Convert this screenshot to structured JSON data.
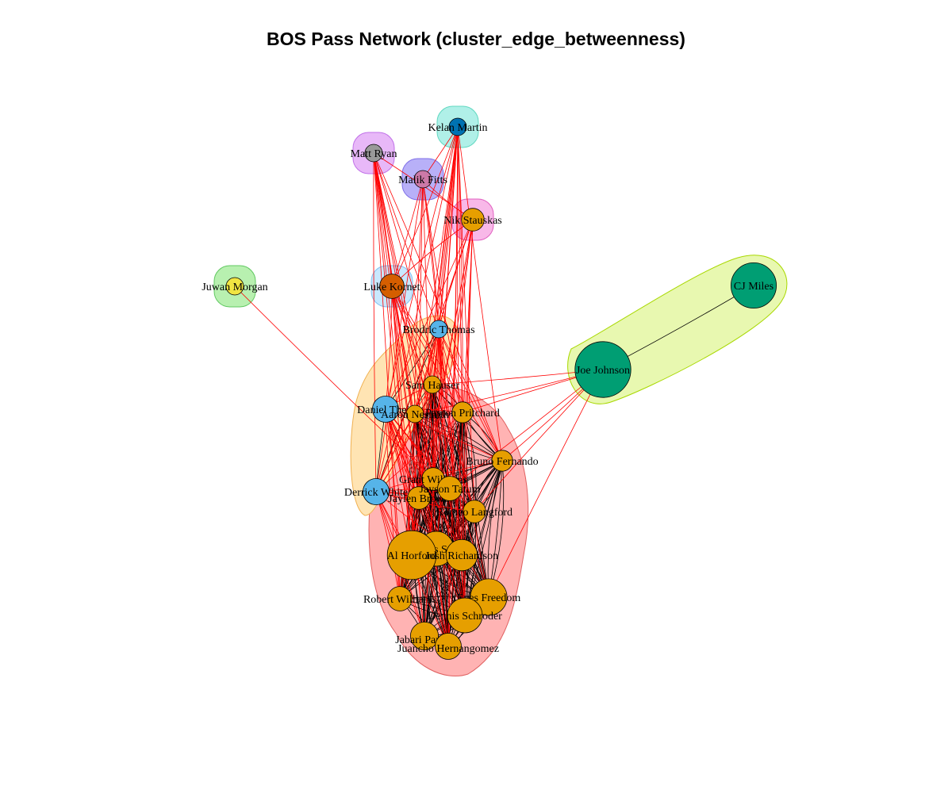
{
  "title": "BOS Pass Network (cluster_edge_betweenness)",
  "colors": {
    "orange": "#E69F00",
    "sky": "#56B4E9",
    "green": "#009E73",
    "yellow": "#F0E442",
    "blue": "#0072B2",
    "vermillion": "#D55E00",
    "pink": "#CC79A7",
    "gray": "#999999",
    "inter_edge": "#ff0000",
    "intra_edge": "#000000"
  },
  "clusters": [
    {
      "id": "c-main",
      "fill": "#ffb3b3",
      "stroke": "#e06060",
      "members": [
        "Marcus Smart",
        "Al Horford",
        "Jayson Tatum",
        "Josh Richardson",
        "Enes Freedom",
        "Dennis Schroder",
        "Payton Pritchard",
        "Sam Hauser",
        "Aaron Nesmith",
        "Grant Williams",
        "Jaylen Brown",
        "Bruno Fernando",
        "Romeo Langford",
        "Robert Williams",
        "Jabari Parker",
        "Juancho Hernangomez"
      ]
    },
    {
      "id": "c-sky",
      "fill": "#ffe4b3",
      "stroke": "#f0b050",
      "members": [
        "Daniel Theis",
        "Dennis Schroder",
        "Brodric Thomas",
        "Derrick White"
      ]
    },
    {
      "id": "c-green",
      "fill": "#e8f8b0",
      "stroke": "#a8d800",
      "members": [
        "Joe Johnson",
        "CJ Miles"
      ]
    },
    {
      "id": "c-yellow",
      "fill": "#b8f0b0",
      "stroke": "#60c860",
      "members": [
        "Juwan Morgan"
      ]
    },
    {
      "id": "c-luke",
      "fill": "#c8e8ff",
      "stroke": "#80c0f0",
      "members": [
        "Luke Kornet"
      ]
    },
    {
      "id": "c-kelan",
      "fill": "#b0f0e8",
      "stroke": "#60d8c0",
      "members": [
        "Kelan Martin"
      ]
    },
    {
      "id": "c-matt",
      "fill": "#e8b8f8",
      "stroke": "#c070e8",
      "members": [
        "Matt Ryan"
      ]
    },
    {
      "id": "c-malik",
      "fill": "#b8b0f8",
      "stroke": "#8070e8",
      "members": [
        "Malik Fitts"
      ]
    },
    {
      "id": "c-nik",
      "fill": "#f8b8e8",
      "stroke": "#e060c0",
      "members": [
        "Nik Stauskas"
      ]
    }
  ],
  "nodes": [
    {
      "name": "Kelan Martin",
      "color": "blue",
      "size": 1
    },
    {
      "name": "Matt Ryan",
      "color": "gray",
      "size": 1
    },
    {
      "name": "Malik Fitts",
      "color": "pink",
      "size": 1
    },
    {
      "name": "Nik Stauskas",
      "color": "orange",
      "size": 1.3
    },
    {
      "name": "Juwan Morgan",
      "color": "yellow",
      "size": 1
    },
    {
      "name": "Luke Kornet",
      "color": "vermillion",
      "size": 1.4
    },
    {
      "name": "CJ Miles",
      "color": "green",
      "size": 2.6
    },
    {
      "name": "Brodric Thomas",
      "color": "sky",
      "size": 1
    },
    {
      "name": "Joe Johnson",
      "color": "green",
      "size": 3.2
    },
    {
      "name": "Sam Hauser",
      "color": "orange",
      "size": 1
    },
    {
      "name": "Daniel Theis",
      "color": "sky",
      "size": 1.5
    },
    {
      "name": "Aaron Nesmith",
      "color": "orange",
      "size": 1
    },
    {
      "name": "Payton Pritchard",
      "color": "orange",
      "size": 1.2
    },
    {
      "name": "Bruno Fernando",
      "color": "orange",
      "size": 1.2
    },
    {
      "name": "Grant Williams",
      "color": "orange",
      "size": 1.3
    },
    {
      "name": "Derrick White",
      "color": "sky",
      "size": 1.5
    },
    {
      "name": "Jaylen Brown",
      "color": "orange",
      "size": 1.3
    },
    {
      "name": "Jayson Tatum",
      "color": "orange",
      "size": 1.4
    },
    {
      "name": "Romeo Langford",
      "color": "orange",
      "size": 1.3
    },
    {
      "name": "Marcus Smart",
      "color": "orange",
      "size": 2.0
    },
    {
      "name": "Al Horford",
      "color": "orange",
      "size": 2.8
    },
    {
      "name": "Josh Richardson",
      "color": "orange",
      "size": 1.8
    },
    {
      "name": "Robert Williams",
      "color": "orange",
      "size": 1.4
    },
    {
      "name": "Enes Freedom",
      "color": "orange",
      "size": 2.1
    },
    {
      "name": "Dennis Schroder",
      "color": "orange",
      "size": 2.0
    },
    {
      "name": "Jabari Parker",
      "color": "orange",
      "size": 1.6
    },
    {
      "name": "Juancho Hernangomez",
      "color": "orange",
      "size": 1.5
    }
  ]
}
